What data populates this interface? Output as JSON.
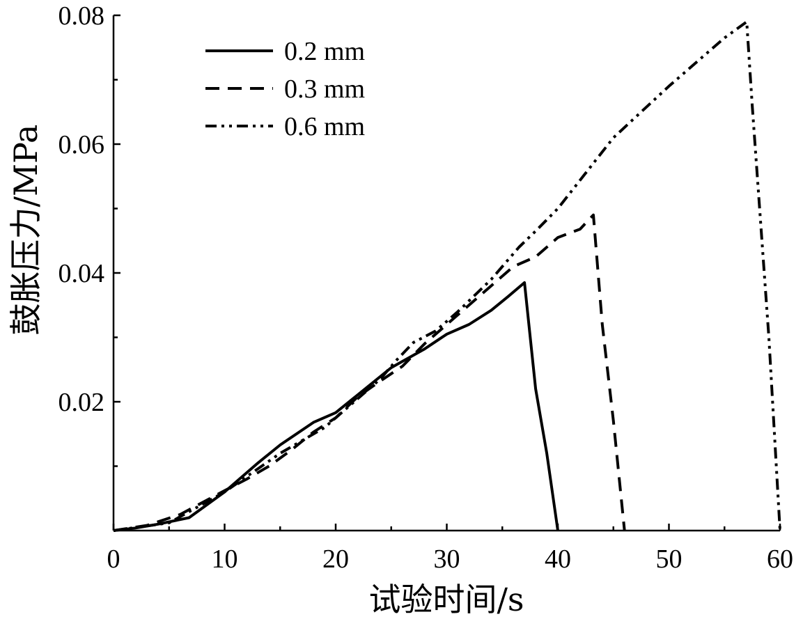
{
  "chart_data": {
    "type": "line",
    "title": "",
    "xlabel": "试验时间/s",
    "ylabel": "鼓胀压力/MPa",
    "xlim": [
      0,
      60
    ],
    "ylim": [
      0,
      0.08
    ],
    "xticks": [
      0,
      10,
      20,
      30,
      40,
      50,
      60
    ],
    "xtick_labels": [
      "0",
      "10",
      "20",
      "30",
      "40",
      "50",
      "60"
    ],
    "yticks": [
      0.02,
      0.04,
      0.06,
      0.08
    ],
    "ytick_labels": [
      "0.02",
      "0.04",
      "0.06",
      "0.08"
    ],
    "grid": false,
    "legend_position": "top-left",
    "series": [
      {
        "name": "0.2 mm",
        "line_style": "solid",
        "color": "#000000",
        "x": [
          0,
          2,
          4,
          6.8,
          10,
          13,
          15,
          18,
          20,
          22.5,
          25,
          28,
          30,
          32,
          34,
          35.5,
          37,
          38,
          39,
          40
        ],
        "y": [
          0,
          0.0004,
          0.001,
          0.002,
          0.006,
          0.0105,
          0.0133,
          0.0168,
          0.0183,
          0.0218,
          0.0253,
          0.0282,
          0.0305,
          0.032,
          0.0342,
          0.0363,
          0.0385,
          0.022,
          0.012,
          0
        ]
      },
      {
        "name": "0.3 mm",
        "line_style": "dashed",
        "color": "#000000",
        "x": [
          0,
          3,
          6,
          10,
          12,
          14,
          16,
          18,
          20,
          22,
          24,
          26,
          28,
          30,
          32,
          34,
          36,
          38,
          40,
          42,
          43.2,
          44,
          45,
          46
        ],
        "y": [
          0,
          0.0008,
          0.0025,
          0.0062,
          0.008,
          0.01,
          0.0125,
          0.0153,
          0.0175,
          0.0208,
          0.0232,
          0.0255,
          0.029,
          0.032,
          0.035,
          0.038,
          0.041,
          0.0425,
          0.0455,
          0.0468,
          0.049,
          0.032,
          0.017,
          0
        ]
      },
      {
        "name": "0.6 mm",
        "line_style": "dashdotdot",
        "color": "#000000",
        "x": [
          0,
          5,
          10,
          15,
          19,
          20,
          24,
          25.5,
          27,
          29,
          31,
          34,
          36.5,
          38,
          40,
          42.5,
          45,
          47.5,
          50,
          53,
          55,
          57,
          57.5,
          59,
          60
        ],
        "y": [
          0,
          0.0012,
          0.006,
          0.012,
          0.016,
          0.0175,
          0.0235,
          0.0265,
          0.0292,
          0.031,
          0.034,
          0.039,
          0.044,
          0.0465,
          0.05,
          0.0555,
          0.061,
          0.065,
          0.069,
          0.0735,
          0.0765,
          0.079,
          0.066,
          0.03,
          0
        ]
      }
    ]
  }
}
